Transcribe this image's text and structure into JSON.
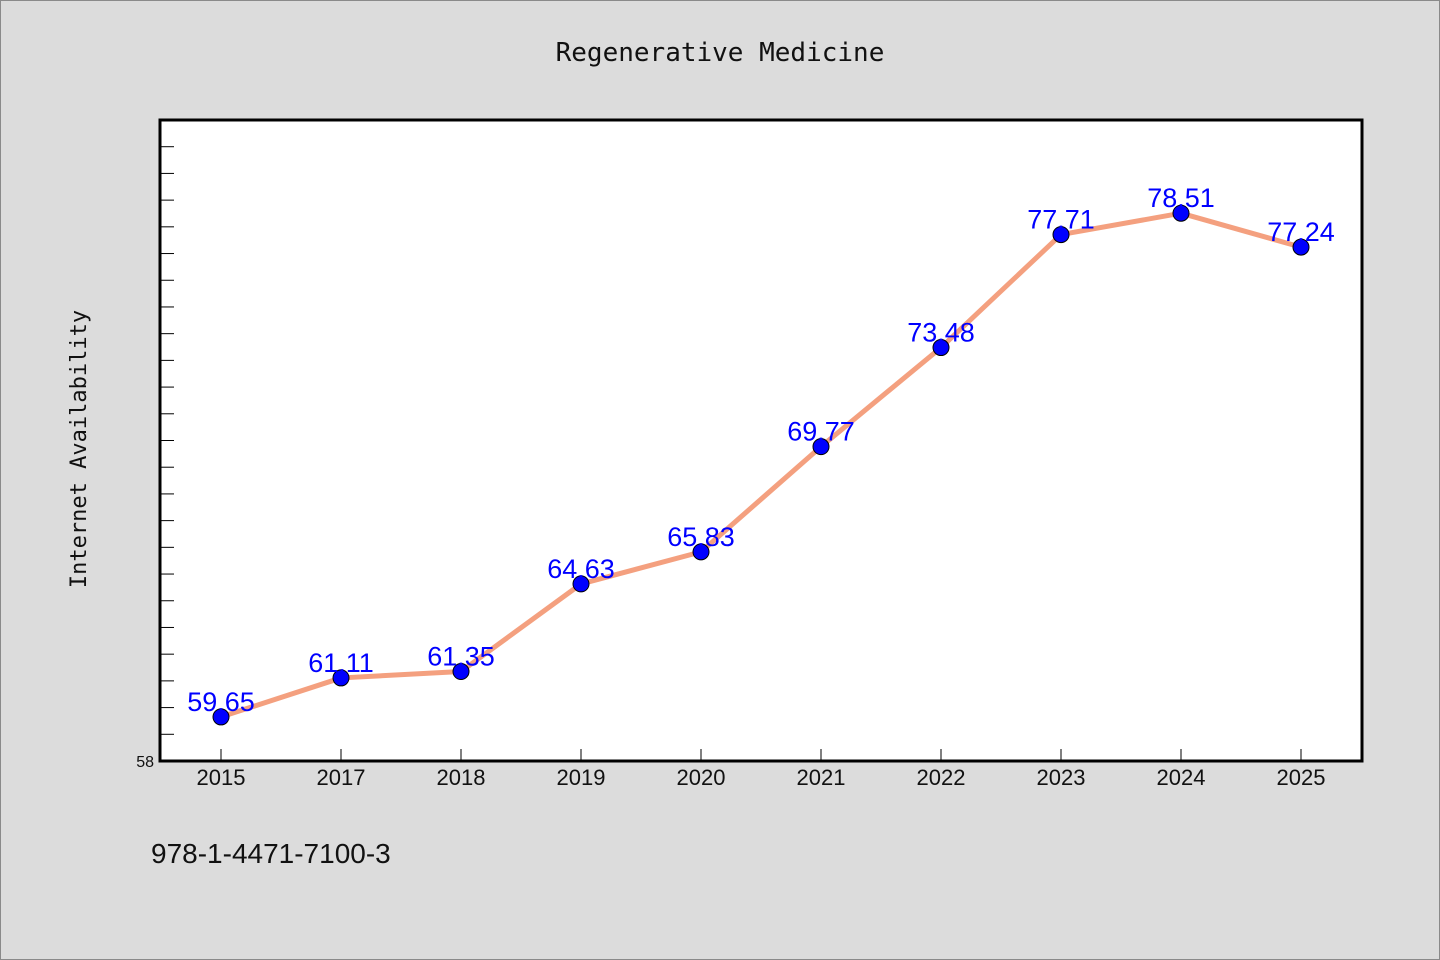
{
  "chart_data": {
    "type": "line",
    "title": "Regenerative Medicine",
    "xlabel": "",
    "ylabel": "Internet Availability",
    "categories": [
      "2015",
      "2017",
      "2018",
      "2019",
      "2020",
      "2021",
      "2022",
      "2023",
      "2024",
      "2025"
    ],
    "series": [
      {
        "values": [
          59.65,
          61.11,
          61.35,
          64.63,
          65.83,
          69.77,
          73.48,
          77.71,
          78.51,
          77.24
        ],
        "data_labels": [
          "59.65",
          "61.11",
          "61.35",
          "64.63",
          "65.83",
          "69.77",
          "73.48",
          "77.71",
          "78.51",
          "77.24"
        ]
      }
    ],
    "ylim": [
      58,
      82
    ],
    "y_tick_labels": [
      "58"
    ],
    "grid": false,
    "colors": {
      "line": "#f4a07f",
      "marker": "#0000ff",
      "label": "#0000ff",
      "background": "#dcdcdc",
      "plot_background": "#ffffff"
    }
  },
  "footer": {
    "isbn": "978-1-4471-7100-3"
  }
}
